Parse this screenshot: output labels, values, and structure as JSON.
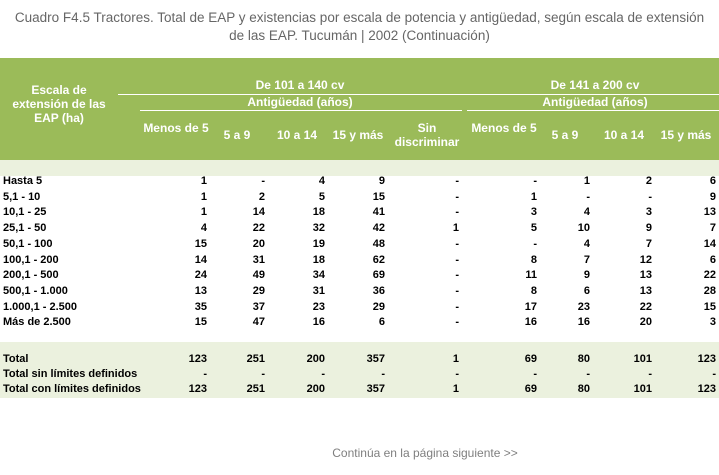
{
  "title_line1": "Cuadro F4.5 Tractores. Total de EAP y existencias por escala de potencia y antigüedad, según escala de extensión",
  "title_line2": "de las EAP.  Tucumán | 2002 (Continuación)",
  "header": {
    "row_header": "Escala de extensión de las EAP (ha)",
    "group1": "De 101 a 140 cv",
    "group2": "De 141 a 200 cv",
    "sub1": "Antigüedad (años)",
    "sub2": "Antigüedad (años)",
    "cols1": [
      "Menos de 5",
      "5 a 9",
      "10 a 14",
      "15 y más",
      "Sin discriminar"
    ],
    "cols2": [
      "Menos de 5",
      "5 a 9",
      "10 a 14",
      "15 y más"
    ]
  },
  "rows": [
    {
      "label": "Hasta 5",
      "values": [
        "1",
        "-",
        "4",
        "9",
        "-",
        "-",
        "1",
        "2",
        "6"
      ]
    },
    {
      "label": "5,1 - 10",
      "values": [
        "1",
        "2",
        "5",
        "15",
        "-",
        "1",
        "-",
        "-",
        "9"
      ]
    },
    {
      "label": "10,1 - 25",
      "values": [
        "1",
        "14",
        "18",
        "41",
        "-",
        "3",
        "4",
        "3",
        "13"
      ]
    },
    {
      "label": "25,1 - 50",
      "values": [
        "4",
        "22",
        "32",
        "42",
        "1",
        "5",
        "10",
        "9",
        "7"
      ]
    },
    {
      "label": "50,1 - 100",
      "values": [
        "15",
        "20",
        "19",
        "48",
        "-",
        "-",
        "4",
        "7",
        "14"
      ]
    },
    {
      "label": "100,1 - 200",
      "values": [
        "14",
        "31",
        "18",
        "62",
        "-",
        "8",
        "7",
        "12",
        "6"
      ]
    },
    {
      "label": "200,1 - 500",
      "values": [
        "24",
        "49",
        "34",
        "69",
        "-",
        "11",
        "9",
        "13",
        "22"
      ]
    },
    {
      "label": "500,1 - 1.000",
      "values": [
        "13",
        "29",
        "31",
        "36",
        "-",
        "8",
        "6",
        "13",
        "28"
      ]
    },
    {
      "label": "1.000,1 - 2.500",
      "values": [
        "35",
        "37",
        "23",
        "29",
        "-",
        "17",
        "23",
        "22",
        "15"
      ]
    },
    {
      "label": "Más de 2.500",
      "values": [
        "15",
        "47",
        "16",
        "6",
        "-",
        "16",
        "16",
        "20",
        "3"
      ]
    }
  ],
  "totals": [
    {
      "label": "Total",
      "values": [
        "123",
        "251",
        "200",
        "357",
        "1",
        "69",
        "80",
        "101",
        "123"
      ]
    },
    {
      "label": "Total sin límites definidos",
      "values": [
        "-",
        "-",
        "-",
        "-",
        "-",
        "-",
        "-",
        "-",
        "-"
      ]
    },
    {
      "label": "Total con límites definidos",
      "values": [
        "123",
        "251",
        "200",
        "357",
        "1",
        "69",
        "80",
        "101",
        "123"
      ]
    }
  ],
  "footer": "Continúa en la página siguiente >>"
}
